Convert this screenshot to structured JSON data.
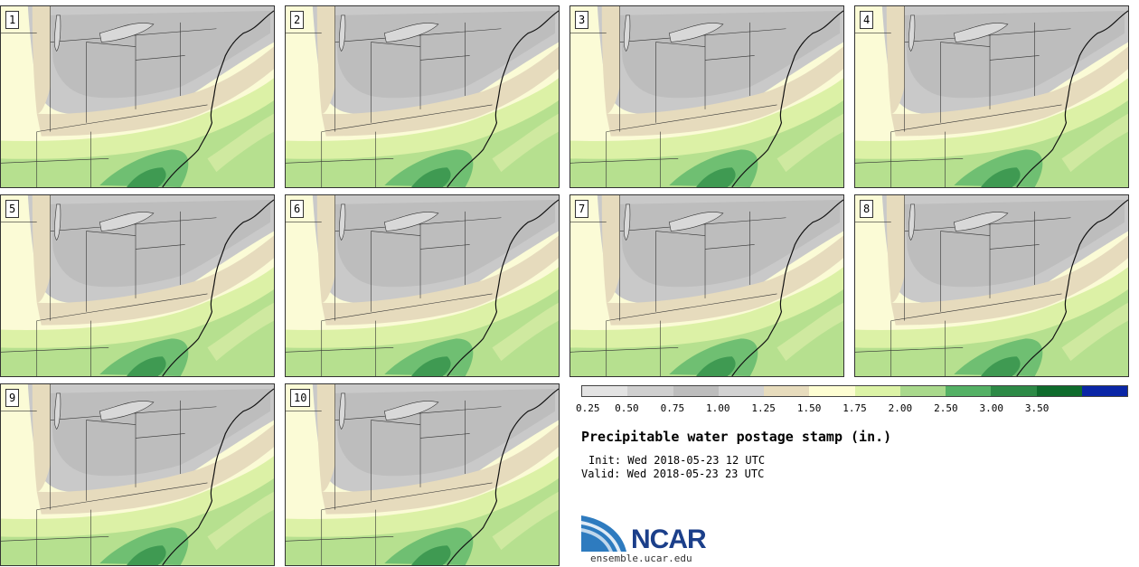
{
  "panels": [
    {
      "label": "1"
    },
    {
      "label": "2"
    },
    {
      "label": "3"
    },
    {
      "label": "4"
    },
    {
      "label": "5"
    },
    {
      "label": "6"
    },
    {
      "label": "7"
    },
    {
      "label": "8"
    },
    {
      "label": "9"
    },
    {
      "label": "10"
    }
  ],
  "colorbar": {
    "colors": [
      "#e3e3e3",
      "#cfcfcf",
      "#bdbdbd",
      "#d2d2d2",
      "#e7dcbd",
      "#fdfdd2",
      "#dcf3a6",
      "#a9d98c",
      "#54b165",
      "#2d8a46",
      "#0f6b2c",
      "#0a26a6"
    ],
    "ticks": [
      "0.25",
      "0.50",
      "0.75",
      "1.00",
      "1.25",
      "1.50",
      "1.75",
      "2.00",
      "2.50",
      "3.00",
      "3.50"
    ]
  },
  "title": "Precipitable water postage stamp (in.)",
  "init": "Init: Wed 2018-05-23 12 UTC",
  "valid": "Valid: Wed 2018-05-23 23 UTC",
  "logo": {
    "text": "NCAR",
    "site": "ensemble.ucar.edu",
    "color": "#1b3f8a"
  }
}
